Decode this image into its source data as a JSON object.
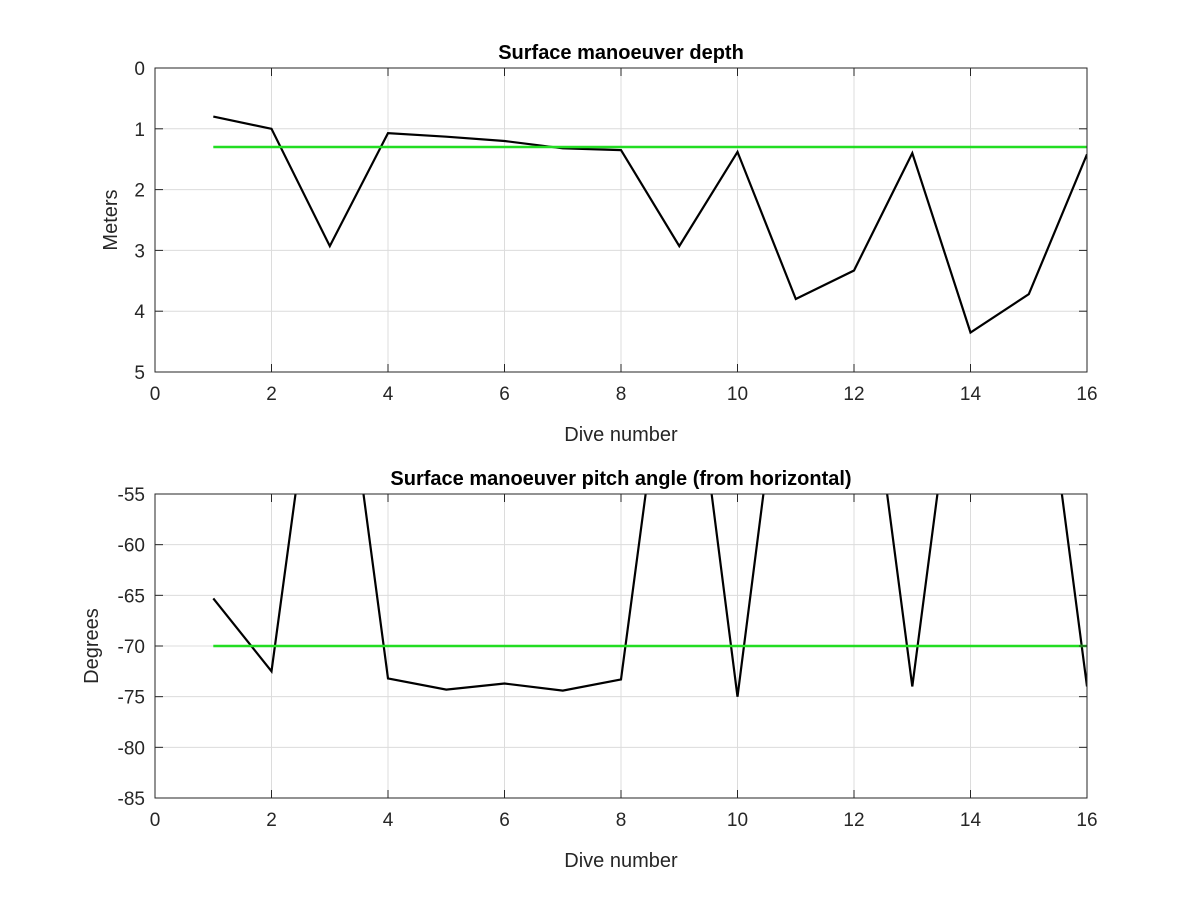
{
  "colors": {
    "background": "#ffffff",
    "axis": "#262626",
    "grid": "#dcdcdc",
    "series": "#000000",
    "reference": "#22dd22"
  },
  "chart_data": [
    {
      "type": "line",
      "title": "Surface manoeuver depth",
      "xlabel": "Dive number",
      "ylabel": "Meters",
      "xlim": [
        0,
        16
      ],
      "ylim": [
        0,
        5
      ],
      "y_reversed": true,
      "xticks": [
        0,
        2,
        4,
        6,
        8,
        10,
        12,
        14,
        16
      ],
      "yticks": [
        0,
        1,
        2,
        3,
        4,
        5
      ],
      "grid": true,
      "series": [
        {
          "color": "#000000",
          "x": [
            1,
            2,
            3,
            4,
            5,
            6,
            7,
            8,
            9,
            10,
            11,
            12,
            13,
            14,
            15,
            16
          ],
          "y": [
            0.8,
            1.0,
            2.93,
            1.07,
            1.13,
            1.2,
            1.32,
            1.35,
            2.93,
            1.38,
            3.8,
            3.33,
            1.4,
            4.35,
            3.72,
            1.42
          ]
        },
        {
          "color": "#22dd22",
          "x": [
            1,
            16
          ],
          "y": [
            1.3,
            1.3
          ]
        }
      ]
    },
    {
      "type": "line",
      "title": "Surface manoeuver pitch angle (from horizontal)",
      "xlabel": "Dive number",
      "ylabel": "Degrees",
      "xlim": [
        0,
        16
      ],
      "ylim": [
        -85,
        -55
      ],
      "xticks": [
        0,
        2,
        4,
        6,
        8,
        10,
        12,
        14,
        16
      ],
      "yticks": [
        -55,
        -60,
        -65,
        -70,
        -75,
        -80,
        -85
      ],
      "grid": true,
      "series": [
        {
          "color": "#000000",
          "x": [
            1,
            2,
            3,
            4,
            5,
            6,
            7,
            8,
            9,
            10,
            11,
            12,
            13,
            14,
            15,
            16
          ],
          "y": [
            -65.3,
            -72.5,
            -30,
            -73.2,
            -74.3,
            -73.7,
            -74.4,
            -73.3,
            -30,
            -75,
            -30,
            -30,
            -74,
            -30,
            -30,
            -74
          ]
        },
        {
          "color": "#22dd22",
          "x": [
            1,
            16
          ],
          "y": [
            -70,
            -70
          ]
        }
      ]
    }
  ]
}
